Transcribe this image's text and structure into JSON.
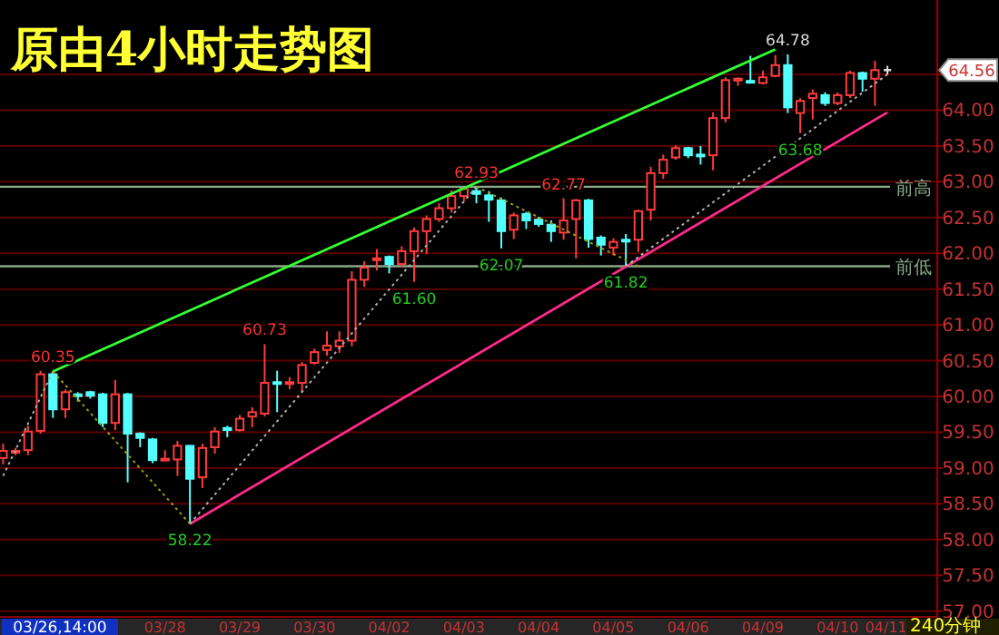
{
  "chart_data": {
    "type": "candlestick",
    "title": "原由4小时走势图",
    "categories": [
      null,
      null,
      null,
      null,
      null,
      null,
      null,
      null,
      null,
      null,
      null,
      null,
      null,
      "03/28",
      null,
      null,
      null,
      null,
      null,
      "03/29",
      null,
      null,
      null,
      null,
      null,
      "03/30",
      null,
      null,
      null,
      null,
      null,
      "04/02",
      null,
      null,
      null,
      null,
      null,
      "04/03",
      null,
      null,
      null,
      null,
      null,
      "04/04",
      null,
      null,
      null,
      null,
      null,
      "04/05",
      null,
      null,
      null,
      null,
      null,
      "04/06",
      null,
      null,
      null,
      null,
      null,
      "04/09",
      null,
      null,
      null,
      null,
      null,
      "04/10",
      null,
      null,
      null,
      null
    ],
    "ohlc": [
      [
        59.14,
        59.34,
        59.05,
        59.24
      ],
      [
        59.22,
        59.28,
        59.18,
        59.24
      ],
      [
        59.25,
        59.59,
        59.18,
        59.51
      ],
      [
        59.52,
        60.36,
        59.48,
        60.31
      ],
      [
        60.31,
        60.35,
        59.7,
        59.82
      ],
      [
        59.82,
        60.1,
        59.7,
        60.06
      ],
      [
        60.03,
        60.06,
        59.93,
        60.01
      ],
      [
        60.06,
        60.08,
        59.97,
        60.01
      ],
      [
        60.03,
        60.05,
        59.57,
        59.63
      ],
      [
        59.63,
        60.23,
        59.53,
        60.03
      ],
      [
        60.03,
        60.05,
        58.8,
        59.48
      ],
      [
        59.48,
        59.5,
        59.29,
        59.42
      ],
      [
        59.4,
        59.42,
        59.07,
        59.11
      ],
      [
        59.12,
        59.25,
        59.1,
        59.13
      ],
      [
        59.12,
        59.38,
        58.89,
        59.31
      ],
      [
        59.31,
        59.32,
        58.22,
        58.85
      ],
      [
        58.87,
        59.34,
        58.72,
        59.28
      ],
      [
        59.29,
        59.57,
        59.2,
        59.51
      ],
      [
        59.56,
        59.59,
        59.43,
        59.53
      ],
      [
        59.53,
        59.74,
        59.51,
        59.69
      ],
      [
        59.72,
        59.85,
        59.57,
        59.78
      ],
      [
        59.76,
        60.73,
        59.72,
        60.19
      ],
      [
        60.2,
        60.36,
        59.78,
        60.18
      ],
      [
        60.18,
        60.27,
        60.1,
        60.2
      ],
      [
        60.19,
        60.48,
        60.06,
        60.44
      ],
      [
        60.47,
        60.67,
        60.44,
        60.62
      ],
      [
        60.65,
        60.91,
        60.57,
        60.71
      ],
      [
        60.7,
        60.91,
        60.61,
        60.78
      ],
      [
        60.78,
        61.75,
        60.7,
        61.63
      ],
      [
        61.63,
        61.89,
        61.53,
        61.8
      ],
      [
        61.92,
        62.06,
        61.76,
        61.93
      ],
      [
        61.95,
        61.97,
        61.72,
        61.85
      ],
      [
        61.85,
        62.1,
        61.8,
        62.03
      ],
      [
        62.03,
        62.36,
        61.6,
        62.31
      ],
      [
        62.31,
        62.53,
        61.99,
        62.48
      ],
      [
        62.48,
        62.7,
        62.44,
        62.63
      ],
      [
        62.63,
        62.88,
        62.57,
        62.8
      ],
      [
        62.8,
        62.92,
        62.73,
        62.9
      ],
      [
        62.87,
        62.93,
        62.7,
        62.83
      ],
      [
        62.81,
        62.87,
        62.44,
        62.75
      ],
      [
        62.74,
        62.78,
        62.07,
        62.31
      ],
      [
        62.33,
        62.57,
        62.2,
        62.53
      ],
      [
        62.55,
        62.58,
        62.34,
        62.46
      ],
      [
        62.47,
        62.51,
        62.37,
        62.41
      ],
      [
        62.4,
        62.46,
        62.16,
        62.31
      ],
      [
        62.29,
        62.77,
        62.19,
        62.46
      ],
      [
        62.48,
        62.76,
        61.93,
        62.74
      ],
      [
        62.74,
        62.76,
        62.08,
        62.2
      ],
      [
        62.22,
        62.25,
        61.97,
        62.12
      ],
      [
        62.08,
        62.21,
        61.97,
        62.16
      ],
      [
        62.19,
        62.27,
        61.82,
        62.18
      ],
      [
        62.19,
        62.61,
        62.02,
        62.59
      ],
      [
        62.61,
        63.21,
        62.46,
        63.12
      ],
      [
        63.12,
        63.38,
        63.04,
        63.31
      ],
      [
        63.34,
        63.51,
        63.31,
        63.47
      ],
      [
        63.47,
        63.49,
        63.33,
        63.37
      ],
      [
        63.38,
        63.5,
        63.24,
        63.37
      ],
      [
        63.37,
        63.97,
        63.16,
        63.89
      ],
      [
        63.89,
        64.46,
        63.83,
        64.42
      ],
      [
        64.42,
        64.46,
        64.34,
        64.44
      ],
      [
        64.41,
        64.76,
        64.38,
        64.4
      ],
      [
        64.38,
        64.55,
        64.36,
        64.46
      ],
      [
        64.48,
        64.77,
        64.46,
        64.63
      ],
      [
        64.63,
        64.78,
        63.96,
        64.04
      ],
      [
        63.96,
        64.17,
        63.68,
        64.13
      ],
      [
        64.17,
        64.29,
        63.87,
        64.23
      ],
      [
        64.21,
        64.25,
        64.06,
        64.1
      ],
      [
        64.1,
        64.25,
        64.07,
        64.21
      ],
      [
        64.21,
        64.55,
        64.17,
        64.52
      ],
      [
        64.52,
        64.54,
        64.26,
        64.44
      ],
      [
        64.44,
        64.69,
        64.06,
        64.56
      ],
      [
        64.56,
        64.62,
        64.5,
        64.56
      ]
    ],
    "ylim": [
      56.92,
      65.54
    ],
    "yticks": [
      {
        "value": 57,
        "label": "57.00"
      },
      {
        "value": 57.5,
        "label": "57.50"
      },
      {
        "value": 58,
        "label": "58.00"
      },
      {
        "value": 58.5,
        "label": "58.50"
      },
      {
        "value": 59,
        "label": "59.00"
      },
      {
        "value": 59.5,
        "label": "59.50"
      },
      {
        "value": 60,
        "label": "60.00"
      },
      {
        "value": 60.5,
        "label": "60.50"
      },
      {
        "value": 61,
        "label": "61.00"
      },
      {
        "value": 61.5,
        "label": "61.50"
      },
      {
        "value": 62,
        "label": "62.00"
      },
      {
        "value": 62.5,
        "label": "62.50"
      },
      {
        "value": 63,
        "label": "63.00"
      },
      {
        "value": 63.5,
        "label": "63.50"
      },
      {
        "value": 64,
        "label": "64.00"
      },
      {
        "value": 64.5,
        "label": null
      }
    ],
    "grid": "y",
    "series": [
      {
        "type": "line",
        "color": "#33ff33",
        "line_style": "solid",
        "values": [
          null,
          null,
          null,
          null,
          60.35,
          null,
          null,
          null,
          null,
          null,
          null,
          null,
          null,
          null,
          null,
          null,
          null,
          null,
          null,
          null,
          null,
          null,
          null,
          null,
          null,
          null,
          null,
          null,
          null,
          null,
          null,
          null,
          null,
          null,
          null,
          null,
          null,
          null,
          null,
          null,
          null,
          null,
          null,
          null,
          null,
          null,
          null,
          null,
          null,
          null,
          null,
          null,
          null,
          null,
          null,
          null,
          null,
          null,
          null,
          null,
          null,
          null,
          64.85,
          null,
          null,
          null,
          null,
          null,
          null,
          null,
          null,
          null
        ]
      },
      {
        "type": "line",
        "color": "#ff2a8a",
        "line_style": "solid",
        "values": [
          null,
          null,
          null,
          null,
          null,
          null,
          null,
          null,
          null,
          null,
          null,
          null,
          null,
          null,
          null,
          58.22,
          null,
          null,
          null,
          null,
          null,
          null,
          null,
          null,
          null,
          null,
          null,
          null,
          null,
          null,
          null,
          null,
          null,
          null,
          null,
          null,
          null,
          null,
          null,
          null,
          null,
          null,
          null,
          null,
          null,
          null,
          null,
          null,
          null,
          null,
          null,
          null,
          null,
          null,
          null,
          null,
          null,
          null,
          null,
          null,
          null,
          null,
          null,
          null,
          null,
          null,
          null,
          null,
          null,
          null,
          null,
          63.97
        ]
      },
      {
        "type": "line",
        "color": "#b0b0b0",
        "line_style": "dotted",
        "values": [
          58.89,
          null,
          null,
          null,
          60.35,
          null,
          null,
          null,
          null,
          null,
          null,
          null,
          null,
          null,
          null,
          null,
          null,
          null,
          null,
          null,
          null,
          null,
          null,
          null,
          null,
          null,
          null,
          null,
          null,
          null,
          null,
          null,
          null,
          null,
          null,
          null,
          null,
          null,
          null,
          null,
          null,
          null,
          null,
          null,
          null,
          null,
          null,
          null,
          null,
          null,
          null,
          null,
          null,
          null,
          null,
          null,
          null,
          null,
          null,
          null,
          null,
          null,
          null,
          null,
          null,
          null,
          null,
          null,
          null,
          null,
          null,
          null
        ]
      },
      {
        "type": "line",
        "color": "#a0a000",
        "line_style": "dotted",
        "values": [
          null,
          null,
          null,
          null,
          60.35,
          null,
          null,
          null,
          null,
          null,
          null,
          null,
          null,
          null,
          null,
          58.22,
          null,
          null,
          null,
          null,
          null,
          null,
          null,
          null,
          null,
          null,
          null,
          null,
          null,
          null,
          null,
          null,
          null,
          null,
          null,
          null,
          null,
          null,
          null,
          null,
          null,
          null,
          null,
          null,
          null,
          null,
          null,
          null,
          null,
          null,
          null,
          null,
          null,
          null,
          null,
          null,
          null,
          null,
          null,
          null,
          null,
          null,
          null,
          null,
          null,
          null,
          null,
          null,
          null,
          null,
          null,
          null
        ]
      },
      {
        "type": "line",
        "color": "#b0b0b0",
        "line_style": "dotted",
        "values": [
          null,
          null,
          null,
          null,
          null,
          null,
          null,
          null,
          null,
          null,
          null,
          null,
          null,
          null,
          null,
          58.22,
          null,
          null,
          null,
          null,
          null,
          null,
          null,
          null,
          null,
          null,
          null,
          null,
          null,
          null,
          null,
          null,
          null,
          null,
          null,
          null,
          null,
          null,
          62.93,
          null,
          null,
          null,
          null,
          null,
          null,
          null,
          null,
          null,
          null,
          null,
          null,
          null,
          null,
          null,
          null,
          null,
          null,
          null,
          null,
          null,
          null,
          null,
          null,
          null,
          null,
          null,
          null,
          null,
          null,
          null,
          null,
          null
        ]
      },
      {
        "type": "line",
        "color": "#a0a000",
        "line_style": "dotted",
        "values": [
          null,
          null,
          null,
          null,
          null,
          null,
          null,
          null,
          null,
          null,
          null,
          null,
          null,
          null,
          null,
          null,
          null,
          null,
          null,
          null,
          null,
          null,
          null,
          null,
          null,
          null,
          null,
          null,
          null,
          null,
          null,
          null,
          null,
          null,
          null,
          null,
          null,
          null,
          62.93,
          null,
          null,
          null,
          null,
          null,
          null,
          null,
          null,
          null,
          null,
          null,
          null,
          61.82,
          null,
          null,
          null,
          null,
          null,
          null,
          null,
          null,
          null,
          null,
          null,
          null,
          null,
          null,
          null,
          null,
          null,
          null,
          null,
          null
        ]
      },
      {
        "type": "line",
        "color": "#b0b0b0",
        "line_style": "dotted",
        "values": [
          null,
          null,
          null,
          null,
          null,
          null,
          null,
          null,
          null,
          null,
          null,
          null,
          null,
          null,
          null,
          null,
          null,
          null,
          null,
          null,
          null,
          null,
          null,
          null,
          null,
          null,
          null,
          null,
          null,
          null,
          null,
          null,
          null,
          null,
          null,
          null,
          null,
          null,
          null,
          null,
          null,
          null,
          null,
          null,
          null,
          null,
          null,
          null,
          null,
          null,
          61.82,
          null,
          null,
          null,
          null,
          null,
          null,
          null,
          null,
          null,
          null,
          null,
          null,
          null,
          null,
          null,
          null,
          null,
          null,
          null,
          null,
          64.5
        ]
      }
    ],
    "ref_lines": [
      {
        "axis": "y",
        "value": 62.93,
        "label": "前高",
        "color": "#8aa88a"
      },
      {
        "axis": "y",
        "value": 61.82,
        "label": "前低",
        "color": "#8aa88a"
      }
    ],
    "annotations": [
      "03/26,14:00",
      "240分钟",
      "04/11",
      "64.56",
      {
        "text": "60.35",
        "y": 60.35
      },
      {
        "text": "58.22",
        "y": 58.22
      },
      {
        "text": "60.73",
        "y": 60.73
      },
      {
        "text": "61.60",
        "y": 61.6
      },
      {
        "text": "62.93",
        "y": 62.93
      },
      {
        "text": "62.07",
        "y": 62.07
      },
      {
        "text": "62.77",
        "y": 62.77
      },
      {
        "text": "61.82",
        "y": 61.82
      },
      {
        "text": "64.78",
        "y": 64.78
      },
      {
        "text": "63.68",
        "y": 63.68
      }
    ]
  }
}
